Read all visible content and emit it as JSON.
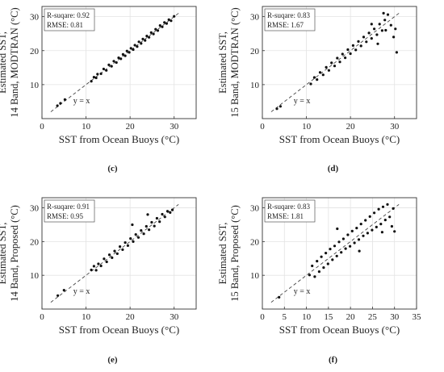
{
  "figure": {
    "panels": [
      {
        "letter": "(c)",
        "stats_r2": "R-suqare: 0.92",
        "stats_rmse": "RMSE: 0.81",
        "ylabel_line1": "Estimated SST,",
        "ylabel_line2": "14 Band, MODTRAN (°C)",
        "xlabel": "SST from Ocean Buoys (°C)",
        "ref_line_label": "y = x"
      },
      {
        "letter": "(d)",
        "stats_r2": "R-suqare: 0.83",
        "stats_rmse": "RMSE: 1.67",
        "ylabel_line1": "Estimated SST,",
        "ylabel_line2": "15 Band, MODTRAN (°C)",
        "xlabel": "SST from Ocean Buoys (°C)",
        "ref_line_label": "y = x"
      },
      {
        "letter": "(e)",
        "stats_r2": "R-suqare: 0.91",
        "stats_rmse": "RMSE: 0.95",
        "ylabel_line1": "Estimated SST,",
        "ylabel_line2": "14 Band, Proposed (°C)",
        "xlabel": "SST from Ocean Buoys (°C)",
        "ref_line_label": "y = x"
      },
      {
        "letter": "(f)",
        "stats_r2": "R-suqare: 0.83",
        "stats_rmse": "RMSE: 1.81",
        "ylabel_line1": "Estimated SST,",
        "ylabel_line2": "15 Band, Proposed (°C)",
        "xlabel": "SST from Ocean Buoys (°C)",
        "ref_line_label": "y = x"
      }
    ]
  },
  "chart_data": [
    {
      "type": "scatter",
      "xlim": [
        0,
        35
      ],
      "ylim": [
        0,
        33
      ],
      "xticks": [
        0,
        10,
        20,
        30
      ],
      "yticks": [
        10,
        20,
        30
      ],
      "grid": true,
      "reference_line": "y = x",
      "points": [
        [
          3.5,
          3.8
        ],
        [
          4.2,
          4.5
        ],
        [
          5.2,
          5.6
        ],
        [
          11.2,
          11.0
        ],
        [
          11.8,
          12.2
        ],
        [
          12.3,
          12.0
        ],
        [
          12.6,
          13.1
        ],
        [
          13.4,
          13.2
        ],
        [
          14.0,
          14.6
        ],
        [
          14.6,
          14.2
        ],
        [
          15.2,
          15.8
        ],
        [
          15.8,
          15.4
        ],
        [
          16.3,
          16.9
        ],
        [
          16.9,
          16.5
        ],
        [
          17.4,
          17.9
        ],
        [
          17.9,
          17.6
        ],
        [
          18.4,
          18.9
        ],
        [
          18.9,
          18.5
        ],
        [
          19.3,
          19.9
        ],
        [
          19.8,
          19.5
        ],
        [
          20.2,
          20.7
        ],
        [
          20.7,
          20.3
        ],
        [
          21.1,
          21.6
        ],
        [
          21.6,
          21.2
        ],
        [
          22.0,
          22.6
        ],
        [
          22.5,
          22.1
        ],
        [
          22.9,
          23.4
        ],
        [
          23.4,
          23.0
        ],
        [
          23.8,
          24.3
        ],
        [
          24.3,
          23.9
        ],
        [
          24.8,
          25.3
        ],
        [
          25.3,
          24.9
        ],
        [
          25.8,
          26.3
        ],
        [
          26.3,
          25.9
        ],
        [
          26.8,
          27.4
        ],
        [
          27.3,
          27.0
        ],
        [
          27.8,
          28.3
        ],
        [
          28.3,
          28.0
        ],
        [
          28.8,
          29.1
        ],
        [
          29.3,
          28.8
        ],
        [
          30.0,
          30.1
        ]
      ]
    },
    {
      "type": "scatter",
      "xlim": [
        0,
        35
      ],
      "ylim": [
        0,
        33
      ],
      "xticks": [
        0,
        10,
        20,
        30
      ],
      "yticks": [
        10,
        20,
        30
      ],
      "grid": true,
      "reference_line": "y = x",
      "points": [
        [
          3.3,
          2.9
        ],
        [
          4.1,
          3.6
        ],
        [
          11.0,
          10.2
        ],
        [
          11.8,
          12.1
        ],
        [
          12.4,
          11.5
        ],
        [
          13.1,
          13.6
        ],
        [
          13.8,
          12.9
        ],
        [
          14.5,
          15.1
        ],
        [
          15.1,
          14.2
        ],
        [
          15.7,
          16.4
        ],
        [
          16.4,
          15.5
        ],
        [
          17.0,
          17.8
        ],
        [
          17.6,
          16.7
        ],
        [
          18.2,
          19.0
        ],
        [
          18.8,
          17.9
        ],
        [
          19.4,
          20.3
        ],
        [
          20.0,
          19.1
        ],
        [
          20.6,
          21.5
        ],
        [
          21.2,
          20.2
        ],
        [
          21.8,
          22.7
        ],
        [
          22.4,
          21.4
        ],
        [
          23.0,
          24.0
        ],
        [
          23.6,
          22.6
        ],
        [
          24.2,
          25.2
        ],
        [
          24.8,
          23.6
        ],
        [
          25.4,
          26.4
        ],
        [
          26.0,
          24.7
        ],
        [
          26.6,
          27.8
        ],
        [
          27.2,
          25.9
        ],
        [
          27.8,
          29.0
        ],
        [
          28.0,
          26.0
        ],
        [
          28.5,
          30.6
        ],
        [
          27.5,
          31.0
        ],
        [
          29.2,
          27.5
        ],
        [
          29.8,
          24.0
        ],
        [
          30.5,
          19.5
        ],
        [
          30.2,
          26.4
        ],
        [
          26.2,
          22.0
        ],
        [
          24.8,
          27.8
        ]
      ]
    },
    {
      "type": "scatter",
      "xlim": [
        0,
        35
      ],
      "ylim": [
        0,
        33
      ],
      "xticks": [
        0,
        10,
        20,
        30
      ],
      "yticks": [
        10,
        20,
        30
      ],
      "grid": true,
      "reference_line": "y = x",
      "points": [
        [
          3.6,
          4.0
        ],
        [
          5.0,
          5.6
        ],
        [
          11.2,
          11.6
        ],
        [
          11.8,
          12.7
        ],
        [
          12.3,
          11.5
        ],
        [
          12.8,
          13.4
        ],
        [
          13.4,
          12.8
        ],
        [
          14.1,
          14.9
        ],
        [
          14.7,
          14.0
        ],
        [
          15.3,
          16.1
        ],
        [
          15.9,
          15.2
        ],
        [
          16.5,
          17.2
        ],
        [
          17.1,
          16.4
        ],
        [
          17.7,
          18.5
        ],
        [
          18.3,
          17.6
        ],
        [
          18.9,
          19.7
        ],
        [
          19.5,
          18.8
        ],
        [
          20.1,
          20.9
        ],
        [
          20.7,
          20.0
        ],
        [
          21.3,
          22.1
        ],
        [
          21.9,
          21.2
        ],
        [
          22.5,
          23.3
        ],
        [
          23.1,
          22.3
        ],
        [
          23.7,
          24.5
        ],
        [
          24.3,
          23.5
        ],
        [
          24.9,
          25.7
        ],
        [
          25.5,
          24.6
        ],
        [
          26.1,
          26.9
        ],
        [
          26.7,
          25.9
        ],
        [
          27.3,
          28.1
        ],
        [
          27.9,
          27.3
        ],
        [
          28.5,
          29.0
        ],
        [
          29.1,
          28.6
        ],
        [
          29.6,
          29.4
        ],
        [
          20.5,
          25.0
        ],
        [
          24.0,
          28.0
        ]
      ]
    },
    {
      "type": "scatter",
      "xlim": [
        0,
        35
      ],
      "ylim": [
        0,
        33
      ],
      "xticks": [
        0,
        5,
        10,
        15,
        20,
        25,
        30,
        35
      ],
      "yticks": [
        10,
        20,
        30
      ],
      "grid": true,
      "reference_line": "y = x",
      "points": [
        [
          3.8,
          3.5
        ],
        [
          10.7,
          10.1
        ],
        [
          11.3,
          12.8
        ],
        [
          11.9,
          9.6
        ],
        [
          12.4,
          14.2
        ],
        [
          12.9,
          11.1
        ],
        [
          13.4,
          15.5
        ],
        [
          13.9,
          12.3
        ],
        [
          14.4,
          16.6
        ],
        [
          14.9,
          13.4
        ],
        [
          15.4,
          17.8
        ],
        [
          15.9,
          14.6
        ],
        [
          16.4,
          18.7
        ],
        [
          16.9,
          15.7
        ],
        [
          17.4,
          19.9
        ],
        [
          17.9,
          16.8
        ],
        [
          18.4,
          20.8
        ],
        [
          18.9,
          17.9
        ],
        [
          19.4,
          22.0
        ],
        [
          19.9,
          18.6
        ],
        [
          20.4,
          23.1
        ],
        [
          20.9,
          19.6
        ],
        [
          21.4,
          24.0
        ],
        [
          21.9,
          20.6
        ],
        [
          22.4,
          25.2
        ],
        [
          22.9,
          21.7
        ],
        [
          23.4,
          26.3
        ],
        [
          23.9,
          22.5
        ],
        [
          24.4,
          27.4
        ],
        [
          24.9,
          23.4
        ],
        [
          25.4,
          28.5
        ],
        [
          25.9,
          24.3
        ],
        [
          26.4,
          29.6
        ],
        [
          26.9,
          25.2
        ],
        [
          27.4,
          30.3
        ],
        [
          27.9,
          26.4
        ],
        [
          28.4,
          31.0
        ],
        [
          28.9,
          27.3
        ],
        [
          29.4,
          24.5
        ],
        [
          30.0,
          23.0
        ],
        [
          29.7,
          29.8
        ],
        [
          27.2,
          22.8
        ],
        [
          17.0,
          23.8
        ],
        [
          22.0,
          17.2
        ]
      ]
    }
  ]
}
